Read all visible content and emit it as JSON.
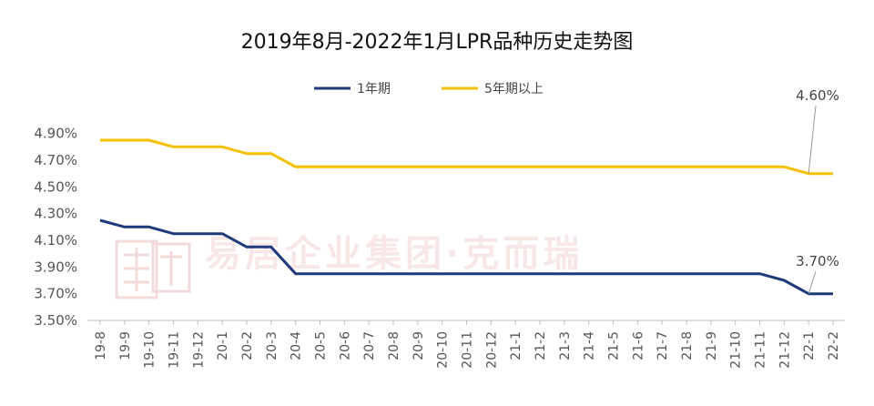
{
  "chart_data": {
    "type": "line",
    "title": "2019年8月-2022年1月LPR品种历史走势图",
    "categories": [
      "19-8",
      "19-9",
      "19-10",
      "19-11",
      "19-12",
      "20-1",
      "20-2",
      "20-3",
      "20-4",
      "20-5",
      "20-6",
      "20-7",
      "20-8",
      "20-9",
      "20-10",
      "20-11",
      "20-12",
      "21-1",
      "21-2",
      "21-3",
      "21-4",
      "21-5",
      "21-6",
      "21-7",
      "21-8",
      "21-9",
      "21-10",
      "21-11",
      "21-12",
      "22-1",
      "22-2"
    ],
    "series": [
      {
        "name": "1年期",
        "color": "#1f3a7a",
        "values": [
          4.25,
          4.2,
          4.2,
          4.15,
          4.15,
          4.15,
          4.05,
          4.05,
          3.85,
          3.85,
          3.85,
          3.85,
          3.85,
          3.85,
          3.85,
          3.85,
          3.85,
          3.85,
          3.85,
          3.85,
          3.85,
          3.85,
          3.85,
          3.85,
          3.85,
          3.85,
          3.85,
          3.85,
          3.8,
          3.7,
          3.7
        ]
      },
      {
        "name": "5年期以上",
        "color": "#f5c000",
        "values": [
          4.85,
          4.85,
          4.85,
          4.8,
          4.8,
          4.8,
          4.75,
          4.75,
          4.65,
          4.65,
          4.65,
          4.65,
          4.65,
          4.65,
          4.65,
          4.65,
          4.65,
          4.65,
          4.65,
          4.65,
          4.65,
          4.65,
          4.65,
          4.65,
          4.65,
          4.65,
          4.65,
          4.65,
          4.65,
          4.6,
          4.6
        ]
      }
    ],
    "ylim": [
      3.5,
      5.0
    ],
    "yticks": [
      "3.50%",
      "3.70%",
      "3.90%",
      "4.10%",
      "4.30%",
      "4.50%",
      "4.70%",
      "4.90%"
    ],
    "ytick_values": [
      3.5,
      3.7,
      3.9,
      4.1,
      4.3,
      4.5,
      4.7,
      4.9
    ],
    "xlabel": "",
    "ylabel": "",
    "grid": false,
    "legend_position": "top",
    "annotations": [
      {
        "text": "4.60%",
        "series": 1,
        "index": 29
      },
      {
        "text": "3.70%",
        "series": 0,
        "index": 29
      }
    ]
  },
  "watermark": {
    "text": "易居企业集团·克而瑞",
    "logo_text": "易居",
    "color": "#c44040"
  }
}
